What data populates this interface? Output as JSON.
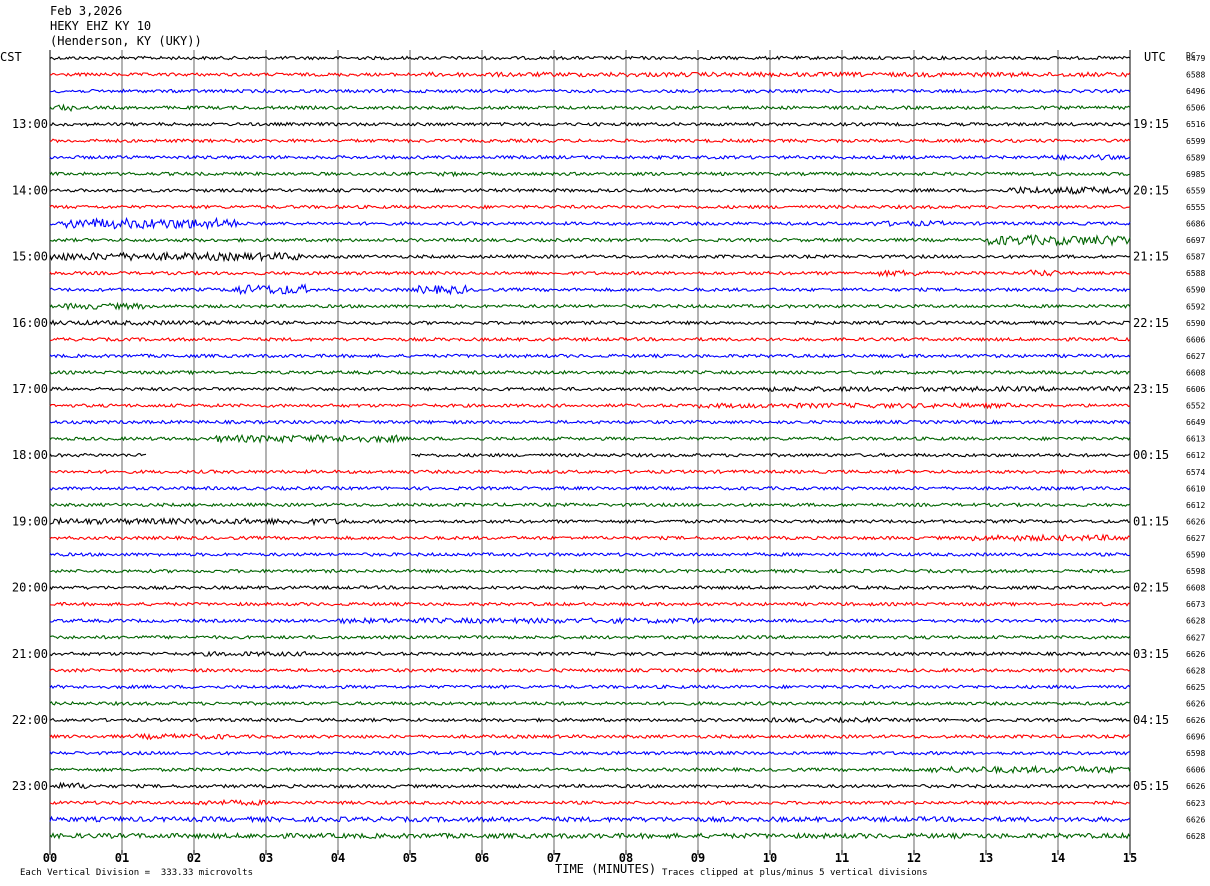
{
  "header": {
    "date": "Feb 3,2026",
    "station": "HEKY EHZ KY 10",
    "location": "(Henderson, KY (UKY))"
  },
  "labels": {
    "left_tz": "CST",
    "right_tz": "UTC",
    "dc": "DC",
    "x_title": "TIME (MINUTES)",
    "scale_note": "Each Vertical Division =  333.33 microvolts",
    "clip_note": "Traces clipped at plus/minus 5 vertical divisions"
  },
  "chart_data": {
    "type": "line",
    "description_of_series": "helicorder: one trace per 15 minutes, colors cycle",
    "xlabel": "TIME (MINUTES)",
    "xlim": [
      0,
      15
    ],
    "x_ticks": [
      "00",
      "01",
      "02",
      "03",
      "04",
      "05",
      "06",
      "07",
      "08",
      "09",
      "10",
      "11",
      "12",
      "13",
      "14",
      "15"
    ],
    "trace_colors": [
      "#000000",
      "#ff0000",
      "#0000ff",
      "#006400"
    ],
    "left_hour_labels": [
      "13:00",
      "14:00",
      "15:00",
      "16:00",
      "17:00",
      "18:00",
      "19:00",
      "20:00",
      "21:00",
      "22:00",
      "23:00"
    ],
    "right_hour_labels": [
      "19:15",
      "20:15",
      "21:15",
      "22:15",
      "23:15",
      "00:15",
      "01:15",
      "02:15",
      "03:15",
      "04:15",
      "05:15"
    ],
    "dc_offsets": [
      "6479",
      "6588",
      "6496",
      "6506",
      "6516",
      "6599",
      "6589",
      "6985",
      "6559",
      "6555",
      "6686",
      "6697",
      "6587",
      "6588",
      "6590",
      "6592",
      "6590",
      "6606",
      "6627",
      "6608",
      "6606",
      "6552",
      "6649",
      "6613",
      "6612",
      "6574",
      "6610",
      "6612",
      "6626",
      "6627",
      "6590",
      "6598",
      "6608",
      "6673",
      "6628",
      "6627",
      "6626",
      "6628",
      "6625",
      "6626",
      "6626",
      "6696",
      "6598",
      "6606",
      "6626",
      "6623",
      "6626",
      "6628"
    ],
    "bursts": [
      {
        "row": 1,
        "x0": 5.2,
        "x1": 15,
        "amp": 1.4
      },
      {
        "row": 3,
        "x0": 0.1,
        "x1": 0.3,
        "amp": 2.0
      },
      {
        "row": 6,
        "x0": 13.8,
        "x1": 14.8,
        "amp": 1.6
      },
      {
        "row": 7,
        "x0": 5.3,
        "x1": 5.8,
        "amp": 1.3
      },
      {
        "row": 8,
        "x0": 13.3,
        "x1": 15,
        "amp": 2.2
      },
      {
        "row": 10,
        "x0": 0.2,
        "x1": 2.6,
        "amp": 3.2
      },
      {
        "row": 10,
        "x0": 11.4,
        "x1": 12.4,
        "amp": 1.6
      },
      {
        "row": 11,
        "x0": 13.0,
        "x1": 15,
        "amp": 3.0
      },
      {
        "row": 12,
        "x0": 0,
        "x1": 3.5,
        "amp": 2.4
      },
      {
        "row": 13,
        "x0": 11.5,
        "x1": 12.2,
        "amp": 1.8
      },
      {
        "row": 13,
        "x0": 13.6,
        "x1": 14.0,
        "amp": 2.0
      },
      {
        "row": 14,
        "x0": 2.5,
        "x1": 3.6,
        "amp": 3.0
      },
      {
        "row": 14,
        "x0": 5.1,
        "x1": 5.8,
        "amp": 2.6
      },
      {
        "row": 15,
        "x0": 0.2,
        "x1": 1.3,
        "amp": 1.8
      },
      {
        "row": 16,
        "x0": 0,
        "x1": 3.0,
        "amp": 1.4
      },
      {
        "row": 20,
        "x0": 9.8,
        "x1": 15,
        "amp": 1.5
      },
      {
        "row": 21,
        "x0": 9.0,
        "x1": 13.4,
        "amp": 1.5
      },
      {
        "row": 23,
        "x0": 2.3,
        "x1": 4.9,
        "amp": 2.2
      },
      {
        "row": 28,
        "x0": 0,
        "x1": 4.2,
        "amp": 1.8
      },
      {
        "row": 29,
        "x0": 12.8,
        "x1": 15,
        "amp": 1.8
      },
      {
        "row": 34,
        "x0": 4.0,
        "x1": 9.2,
        "amp": 1.6
      },
      {
        "row": 36,
        "x0": 2.1,
        "x1": 4.0,
        "amp": 1.4
      },
      {
        "row": 40,
        "x0": 10.0,
        "x1": 11.5,
        "amp": 1.4
      },
      {
        "row": 41,
        "x0": 1.2,
        "x1": 2.5,
        "amp": 1.6
      },
      {
        "row": 43,
        "x0": 12.2,
        "x1": 15,
        "amp": 2.0
      },
      {
        "row": 44,
        "x0": 0,
        "x1": 0.5,
        "amp": 2.0
      },
      {
        "row": 45,
        "x0": 2.0,
        "x1": 3.0,
        "amp": 1.6
      },
      {
        "row": 46,
        "x0": 0,
        "x1": 15,
        "amp": 1.5
      },
      {
        "row": 47,
        "x0": 0,
        "x1": 15,
        "amp": 1.5
      }
    ],
    "gaps": [
      {
        "row": 24,
        "x0": 1.35,
        "x1": 5.0
      }
    ]
  }
}
